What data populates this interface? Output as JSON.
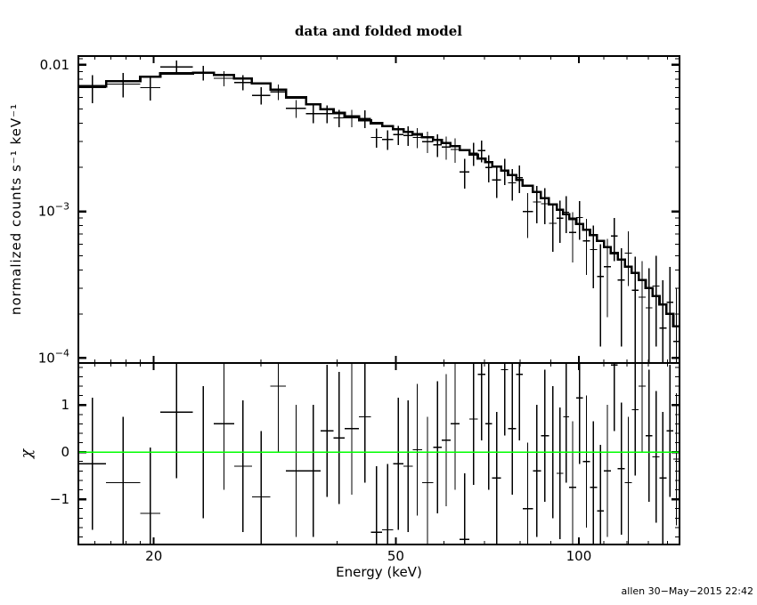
{
  "page": {
    "background": "#ffffff"
  },
  "footer": {
    "timestamp": "allen 30−May−2015 22:42"
  },
  "chart_data": {
    "type": "scatter",
    "title": "data and folded model",
    "xlabel": "Energy (keV)",
    "xscale": "log",
    "xlim": [
      15.03,
      146.4
    ],
    "x_ticks": {
      "major": {
        "values": [
          20,
          50,
          100
        ],
        "labels": [
          "20",
          "50",
          "100"
        ]
      },
      "minor": [
        16,
        17,
        18,
        19,
        30,
        40,
        60,
        70,
        80,
        90,
        110,
        120,
        130,
        140
      ]
    },
    "bin_edges": [
      15.03,
      16.7,
      19.0,
      20.5,
      23.2,
      25.1,
      27.1,
      29.0,
      31.1,
      33.0,
      35.6,
      37.6,
      39.5,
      41.2,
      43.5,
      45.5,
      47.5,
      49.5,
      51.5,
      53.3,
      55.2,
      57.6,
      59.5,
      61.5,
      63.7,
      66.1,
      68.2,
      70.2,
      72.0,
      74.5,
      76.5,
      78.9,
      80.8,
      84.0,
      86.6,
      89.3,
      92.0,
      94.2,
      96.4,
      99.0,
      101.6,
      104.3,
      107.1,
      110.0,
      112.9,
      115.9,
      119.0,
      122.2,
      125.4,
      128.8,
      132.2,
      135.7,
      139.3,
      143.0,
      146.4
    ],
    "colors": {
      "frame": "#000000",
      "data": "#000000",
      "model": "#000000",
      "zero_line": "#00ff00",
      "text": "#000000"
    },
    "panels": [
      {
        "name": "spectrum",
        "ylabel": "normalized counts s⁻¹ keV⁻¹",
        "yscale": "log",
        "ylim": [
          9.25e-05,
          0.0115
        ],
        "y_ticks": {
          "major": {
            "values": [
              0.01,
              0.001,
              0.0001
            ],
            "labels": [
              {
                "t": "0.01"
              },
              {
                "t": "10",
                "sup": "−3"
              },
              {
                "t": "10",
                "sup": "−4"
              }
            ]
          },
          "minor": [
            0.011,
            0.009,
            0.008,
            0.007,
            0.006,
            0.005,
            0.004,
            0.003,
            0.002,
            0.0009,
            0.0008,
            0.0007,
            0.0006,
            0.0005,
            0.0004,
            0.0003,
            0.0002
          ]
        },
        "series": [
          {
            "name": "data",
            "style": "cross-errorbar",
            "values": [
              0.007,
              0.0074,
              0.007,
              0.0097,
              0.00885,
              0.0081,
              0.0076,
              0.0062,
              0.00655,
              0.00505,
              0.00465,
              0.00465,
              0.00435,
              0.00435,
              0.0043,
              0.0032,
              0.0031,
              0.00335,
              0.0033,
              0.0032,
              0.003,
              0.00285,
              0.00275,
              0.00265,
              0.00186,
              0.0025,
              0.0026,
              0.002,
              0.00164,
              0.0019,
              0.00157,
              0.0017,
              0.001,
              0.00116,
              0.00113,
              0.00083,
              0.0009,
              0.00099,
              0.00072,
              0.00091,
              0.00063,
              0.00055,
              0.00036,
              0.00042,
              0.00068,
              0.00034,
              0.00052,
              0.00029,
              0.00026,
              0.00022,
              0.00031,
              0.00016,
              0.00024,
              0.00013
            ],
            "sigma": [
              0.0015,
              0.0014,
              0.0013,
              0.00105,
              0.001,
              0.00095,
              0.0009,
              0.00085,
              0.0008,
              0.0007,
              0.00065,
              0.00065,
              0.0006,
              0.0006,
              0.0006,
              0.00047,
              0.00047,
              0.0005,
              0.0005,
              0.0005,
              0.0005,
              0.0005,
              0.0005,
              0.0005,
              0.00043,
              0.00045,
              0.00044,
              0.00042,
              0.0004,
              0.00039,
              0.00038,
              0.00036,
              0.00034,
              0.00033,
              0.00031,
              0.0003,
              0.00029,
              0.00028,
              0.00027,
              0.00027,
              0.00026,
              0.00025,
              0.00024,
              0.00023,
              0.00022,
              0.00022,
              0.00021,
              0.0002,
              0.0002,
              0.00019,
              0.00019,
              0.00018,
              0.00018,
              0.00017
            ]
          },
          {
            "name": "folded model",
            "style": "histogram",
            "values": [
              0.00715,
              0.00775,
              0.0083,
              0.00875,
              0.00885,
              0.00855,
              0.0081,
              0.0075,
              0.0068,
              0.006,
              0.0054,
              0.005,
              0.0047,
              0.00445,
              0.0042,
              0.004,
              0.00382,
              0.00365,
              0.0035,
              0.00336,
              0.00322,
              0.00308,
              0.00294,
              0.0028,
              0.00262,
              0.00245,
              0.0023,
              0.00217,
              0.00203,
              0.0019,
              0.00177,
              0.00164,
              0.0015,
              0.00136,
              0.00123,
              0.00112,
              0.00103,
              0.00096,
              0.00089,
              0.00082,
              0.00075,
              0.00069,
              0.00063,
              0.00057,
              0.00052,
              0.00047,
              0.00042,
              0.00038,
              0.00034,
              0.0003,
              0.000265,
              0.000232,
              0.0002,
              0.000165
            ]
          }
        ]
      },
      {
        "name": "residuals",
        "ylabel": "χ",
        "yscale": "linear",
        "ylim": [
          -1.96,
          1.89
        ],
        "y_ticks": {
          "major": {
            "values": [
              1,
              0,
              -1
            ],
            "labels": [
              {
                "t": "1"
              },
              {
                "t": "0"
              },
              {
                "t": "−1"
              }
            ]
          },
          "minor": [
            1.8,
            1.6,
            1.4,
            1.2,
            0.8,
            0.6,
            0.4,
            0.2,
            -0.2,
            -0.4,
            -0.6,
            -0.8,
            -1.2,
            -1.4,
            -1.6,
            -1.8
          ]
        },
        "series": [
          {
            "name": "chi",
            "style": "cross-errorbar",
            "values": [
              -0.25,
              -0.65,
              -1.3,
              0.85,
              0.0,
              0.6,
              -0.3,
              -0.95,
              1.4,
              -0.4,
              -0.4,
              0.45,
              0.3,
              0.5,
              0.75,
              -1.7,
              -1.65,
              -0.25,
              -0.3,
              0.05,
              -0.65,
              0.1,
              0.25,
              0.6,
              -1.85,
              0.7,
              1.65,
              0.6,
              -0.55,
              1.75,
              0.5,
              1.65,
              -1.2,
              -0.4,
              0.35,
              0.0,
              -0.45,
              0.75,
              -0.75,
              1.15,
              -0.2,
              -0.75,
              -1.25,
              -0.4,
              1.85,
              -0.35,
              -0.65,
              0.9,
              1.4,
              0.35,
              -0.1,
              -0.55,
              0.45,
              -0.15
            ],
            "sigma": 1.4
          },
          {
            "name": "zero-line",
            "style": "hline",
            "y": 0,
            "color": "#00ff00"
          }
        ]
      }
    ]
  }
}
